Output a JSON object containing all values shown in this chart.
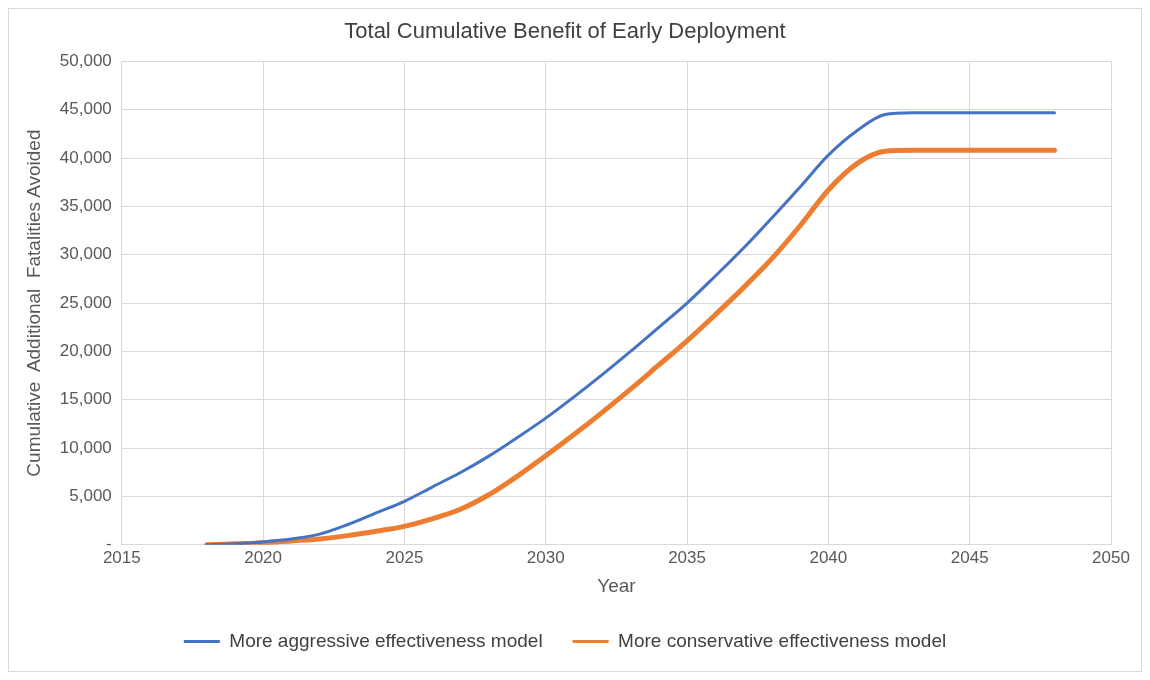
{
  "chart_data": {
    "type": "line",
    "title": "Total Cumulative Benefit of Early Deployment",
    "xlabel": "Year",
    "ylabel": "Cumulative  Additional  Fatalities Avoided",
    "x": [
      2018,
      2019,
      2020,
      2021,
      2022,
      2023,
      2024,
      2025,
      2026,
      2027,
      2028,
      2029,
      2030,
      2031,
      2032,
      2033,
      2034,
      2035,
      2036,
      2037,
      2038,
      2039,
      2040,
      2041,
      2042,
      2043,
      2044,
      2045,
      2046,
      2047,
      2048
    ],
    "series": [
      {
        "name": "More aggressive effectiveness model",
        "color": "#4472c4",
        "values": [
          0,
          100,
          300,
          600,
          1100,
          2100,
          3300,
          4500,
          6000,
          7500,
          9200,
          11100,
          13100,
          15300,
          17600,
          20000,
          22500,
          25000,
          27800,
          30700,
          33800,
          37000,
          40300,
          42800,
          44500,
          44700,
          44700,
          44700,
          44700,
          44700,
          44700
        ]
      },
      {
        "name": "More conservative effectiveness model",
        "color": "#ed7d31",
        "values": [
          0,
          100,
          200,
          400,
          600,
          950,
          1400,
          1900,
          2700,
          3700,
          5200,
          7100,
          9200,
          11400,
          13700,
          16100,
          18600,
          21100,
          23800,
          26600,
          29600,
          33000,
          36700,
          39400,
          40700,
          40800,
          40800,
          40800,
          40800,
          40800,
          40800
        ]
      }
    ],
    "xlim": [
      2015,
      2050
    ],
    "xticks": [
      2015,
      2020,
      2025,
      2030,
      2035,
      2040,
      2045,
      2050
    ],
    "ylim": [
      0,
      50000
    ],
    "yticks": [
      {
        "value": 0,
        "label": "-"
      },
      {
        "value": 5000,
        "label": "5,000"
      },
      {
        "value": 10000,
        "label": "10,000"
      },
      {
        "value": 15000,
        "label": "15,000"
      },
      {
        "value": 20000,
        "label": "20,000"
      },
      {
        "value": 25000,
        "label": "25,000"
      },
      {
        "value": 30000,
        "label": "30,000"
      },
      {
        "value": 35000,
        "label": "35,000"
      },
      {
        "value": 40000,
        "label": "40,000"
      },
      {
        "value": 45000,
        "label": "45,000"
      },
      {
        "value": 50000,
        "label": "50,000"
      }
    ],
    "grid": true,
    "legend": "bottom",
    "marker": "none",
    "line_style": "solid"
  }
}
